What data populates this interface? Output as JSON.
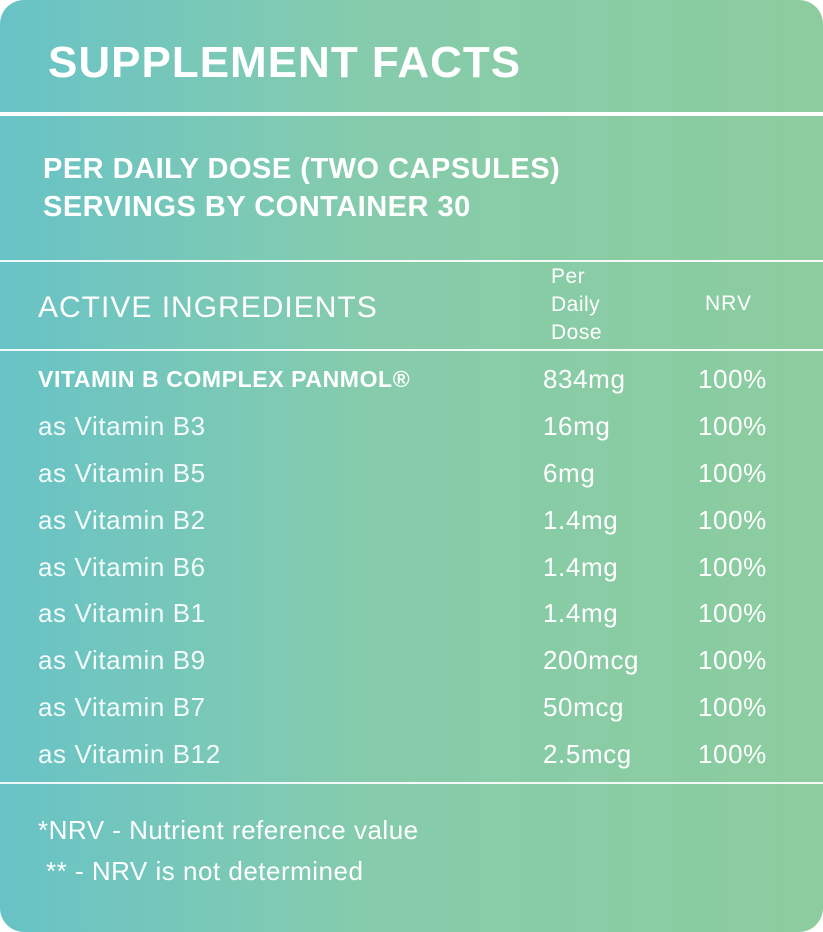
{
  "title": "SUPPLEMENT FACTS",
  "dose": {
    "line1": "PER DAILY DOSE (TWO CAPSULES)",
    "line2": "SERVINGS BY CONTAINER 30"
  },
  "table_header": {
    "active": "ACTIVE INGREDIENTS",
    "per_day_1": "Per",
    "per_day_2": "Daily",
    "per_day_3": "Dose",
    "nrv": "NRV"
  },
  "rows": [
    {
      "name": "VITAMIN B COMPLEX PANMOL®",
      "amount": "834mg",
      "nrv": "100%"
    },
    {
      "name": "as Vitamin B3",
      "amount": "16mg",
      "nrv": "100%"
    },
    {
      "name": "as Vitamin B5",
      "amount": "6mg",
      "nrv": "100%"
    },
    {
      "name": "as Vitamin B2",
      "amount": "1.4mg",
      "nrv": "100%"
    },
    {
      "name": "as Vitamin B6",
      "amount": "1.4mg",
      "nrv": "100%"
    },
    {
      "name": "as Vitamin B1",
      "amount": "1.4mg",
      "nrv": "100%"
    },
    {
      "name": "as Vitamin B9",
      "amount": "200mcg",
      "nrv": "100%"
    },
    {
      "name": "as Vitamin B7",
      "amount": "50mcg",
      "nrv": "100%"
    },
    {
      "name": "as Vitamin B12",
      "amount": "2.5mcg",
      "nrv": "100%"
    }
  ],
  "footnotes": {
    "note1": "*NRV - Nutrient reference value",
    "note2": "** - NRV is not determined"
  },
  "colors": {
    "gradient_left": "#68c3c6",
    "gradient_right": "#8ccc9e",
    "text": "#ffffff"
  }
}
